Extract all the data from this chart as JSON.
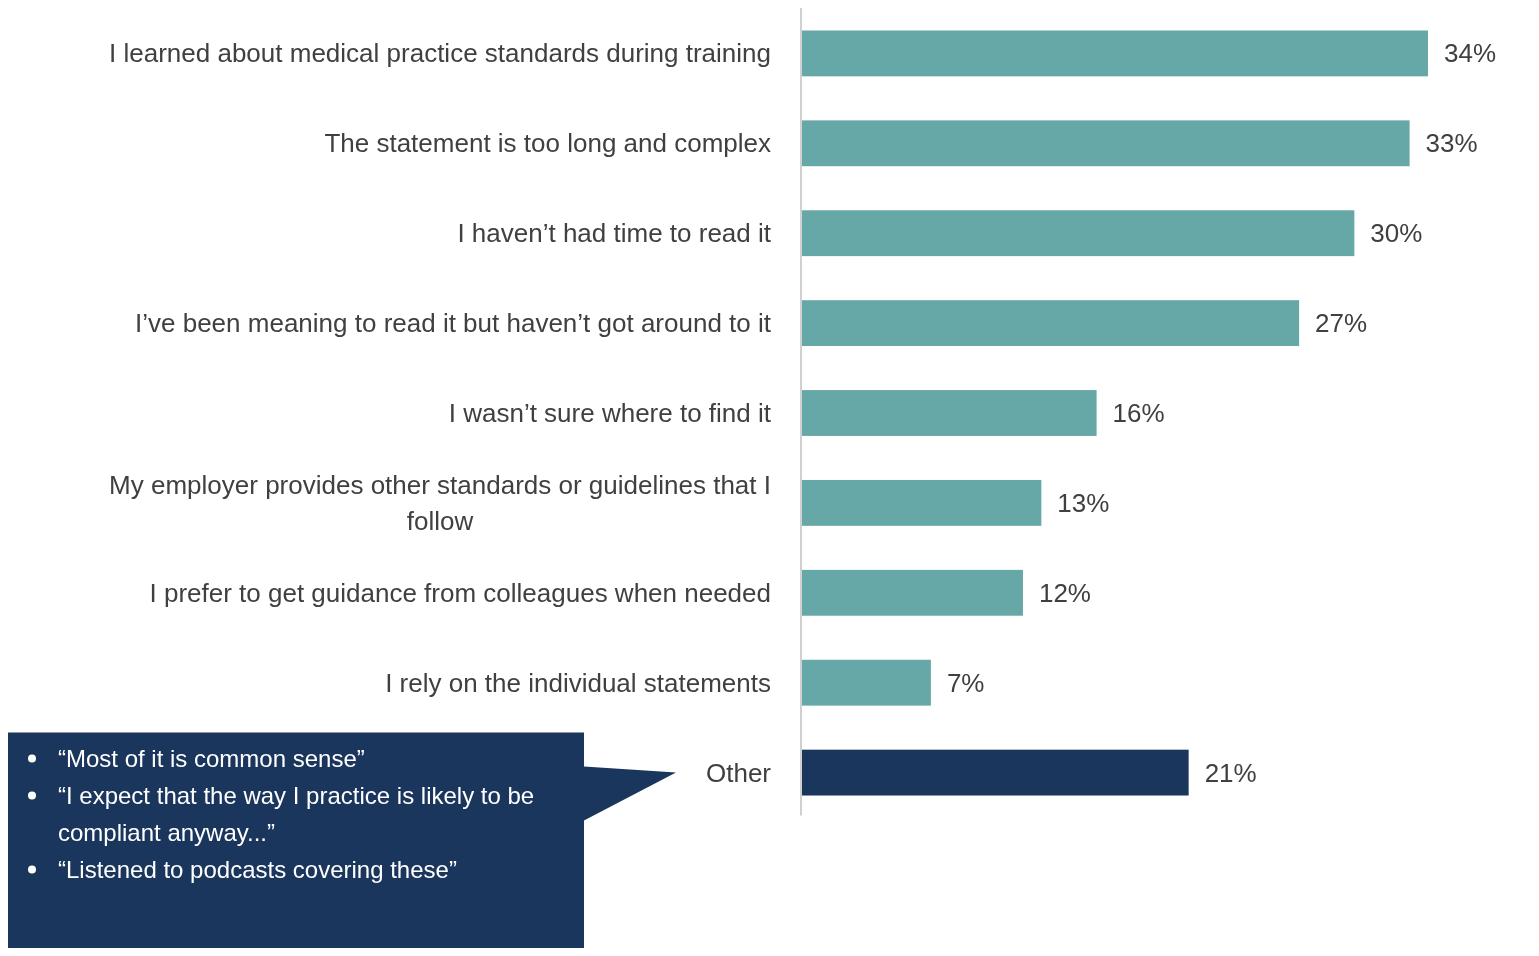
{
  "chart_data": {
    "type": "bar",
    "orientation": "horizontal",
    "relative": false,
    "categories": [
      "I learned about medical practice standards during training",
      "The statement is too long and complex",
      "I haven’t had time to read it",
      "I’ve been meaning to read it but haven’t got around to it",
      "I wasn’t sure where to find it",
      "My employer provides other standards or guidelines that I follow",
      "I prefer to get guidance from colleagues when needed",
      "I rely on the individual statements",
      "Other"
    ],
    "values": [
      34,
      33,
      30,
      27,
      16,
      13,
      12,
      7,
      21
    ],
    "colors": [
      "#66a8a8",
      "#66a8a8",
      "#66a8a8",
      "#66a8a8",
      "#66a8a8",
      "#66a8a8",
      "#66a8a8",
      "#66a8a8",
      "#1b365d"
    ],
    "value_labels": [
      "34%",
      "33%",
      "30%",
      "27%",
      "16%",
      "13%",
      "12%",
      "7%",
      "21%"
    ],
    "annotations": [
      "“Most of it is common sense”",
      "“I expect that the way I practice is likely to be compliant anyway...”",
      "“Listened to podcasts covering these”"
    ]
  }
}
